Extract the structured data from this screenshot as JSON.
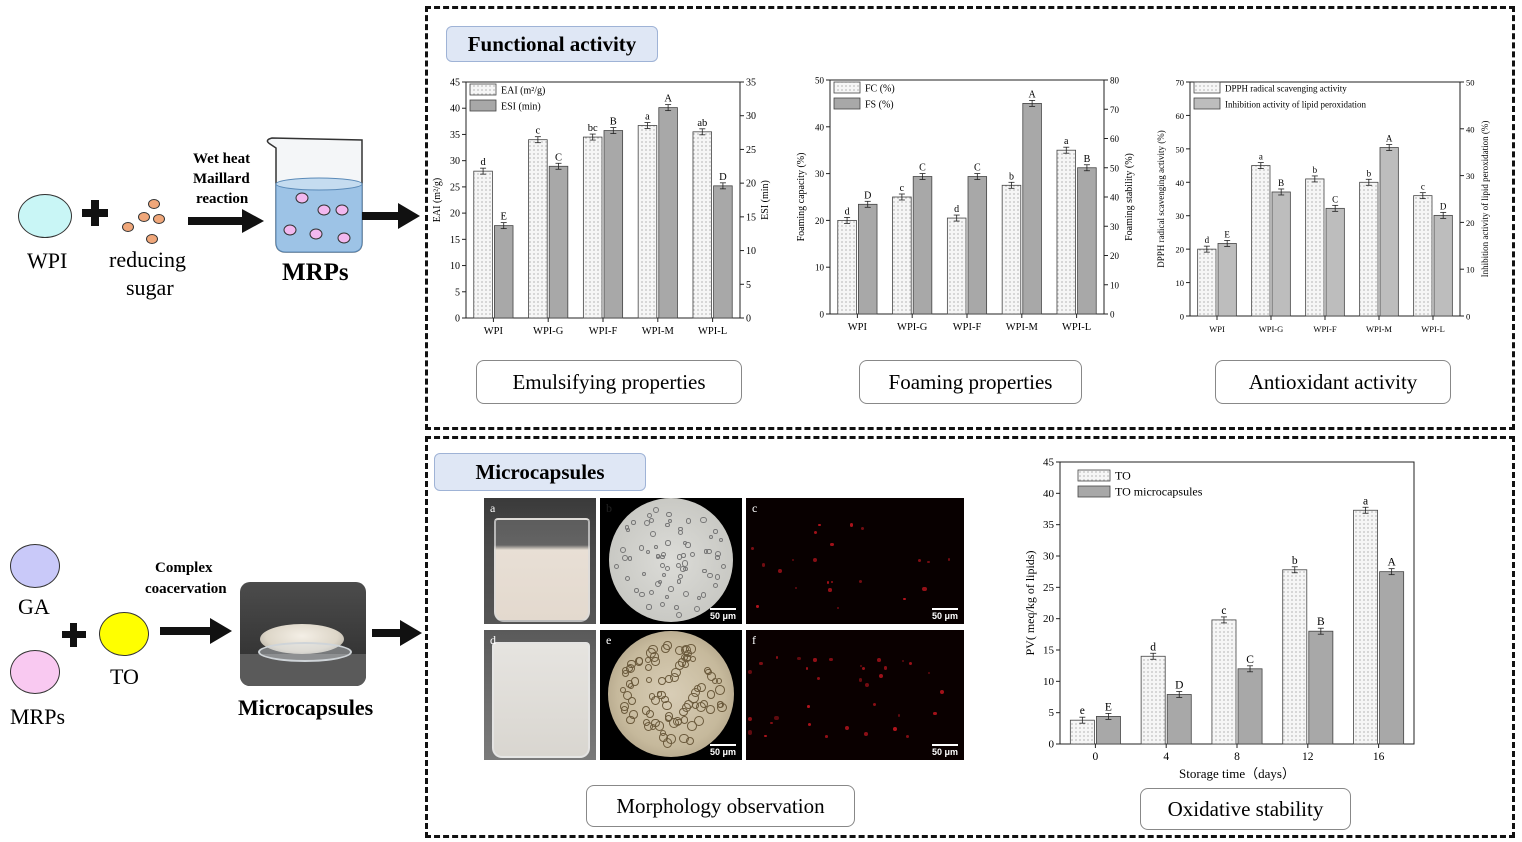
{
  "left_top": {
    "wpi_label": "WPI",
    "sugar_label_1": "reducing",
    "sugar_label_2": "sugar",
    "reaction_1": "Wet heat",
    "reaction_2": "Maillard",
    "reaction_3": "reaction",
    "product_label": "MRPs"
  },
  "left_bottom": {
    "ga_label": "GA",
    "mrps_label": "MRPs",
    "to_label": "TO",
    "process_1": "Complex",
    "process_2": "coacervation",
    "product_label": "Microcapsules"
  },
  "functional": {
    "tag": "Functional activity",
    "captions": [
      "Emulsifying properties",
      "Foaming properties",
      "Antioxidant activity"
    ]
  },
  "micro": {
    "tag": "Microcapsules",
    "morph_caption": "Morphology observation",
    "oxid_caption": "Oxidative stability",
    "panels": [
      {
        "label": "a",
        "scale": ""
      },
      {
        "label": "b",
        "scale": "50 μm"
      },
      {
        "label": "c",
        "scale": "50 μm"
      },
      {
        "label": "d",
        "scale": ""
      },
      {
        "label": "e",
        "scale": "50 μm"
      },
      {
        "label": "f",
        "scale": "50 μm"
      }
    ]
  },
  "colors": {
    "wpi": "#c9f6f6",
    "ga": "#c9c9f9",
    "mrps_ball": "#f9c9f1",
    "to": "#ffff00",
    "sugar": "#f0a77a",
    "tag_bg": "#dfe7f5",
    "bar_light": "#f2f2f2",
    "bar_dark": "#a8a8a8"
  },
  "chart_data": [
    {
      "type": "bar",
      "categories": [
        "WPI",
        "WPI-G",
        "WPI-F",
        "WPI-M",
        "WPI-L"
      ],
      "series": [
        {
          "name": "EAI (m²/g)",
          "values": [
            28,
            34,
            34.5,
            36.7,
            35.5
          ],
          "labels": [
            "d",
            "c",
            "bc",
            "a",
            "ab"
          ],
          "axis": "left"
        },
        {
          "name": "ESI (min)",
          "values": [
            13.7,
            22.5,
            27.8,
            31.2,
            19.6
          ],
          "labels": [
            "E",
            "C",
            "B",
            "A",
            "D"
          ],
          "axis": "right"
        }
      ],
      "ylabel": "EAI (m²/g)",
      "ylim": [
        0,
        45
      ],
      "yticks": [
        0,
        5,
        10,
        15,
        20,
        25,
        30,
        35,
        40,
        45
      ],
      "y2label": "ESI (min)",
      "y2lim": [
        0,
        35
      ],
      "y2ticks": [
        0,
        5,
        10,
        15,
        20,
        25,
        30,
        35
      ]
    },
    {
      "type": "bar",
      "categories": [
        "WPI",
        "WPI-G",
        "WPI-F",
        "WPI-M",
        "WPI-L"
      ],
      "series": [
        {
          "name": "FC (%)",
          "values": [
            20,
            25,
            20.5,
            27.5,
            35
          ],
          "labels": [
            "d",
            "c",
            "d",
            "b",
            "a"
          ],
          "axis": "left"
        },
        {
          "name": "FS (%)",
          "values": [
            37.5,
            47,
            47,
            72,
            50
          ],
          "labels": [
            "D",
            "C",
            "C",
            "A",
            "B"
          ],
          "axis": "right"
        }
      ],
      "ylabel": "Foaming capacity (%)",
      "ylim": [
        0,
        50
      ],
      "yticks": [
        0,
        10,
        20,
        30,
        40,
        50
      ],
      "y2label": "Foaming stability (%)",
      "y2lim": [
        0,
        80
      ],
      "y2ticks": [
        0,
        10,
        20,
        30,
        40,
        50,
        60,
        70,
        80
      ]
    },
    {
      "type": "bar",
      "categories": [
        "WPI",
        "WPI-G",
        "WPI-F",
        "WPI-M",
        "WPI-L"
      ],
      "series": [
        {
          "name": "DPPH radical scavenging activity",
          "values": [
            20,
            45,
            41,
            40,
            36
          ],
          "labels": [
            "d",
            "a",
            "b",
            "b",
            "c"
          ],
          "axis": "left"
        },
        {
          "name": "Inhibition activity of lipid peroxidation",
          "values": [
            15.5,
            26.5,
            23,
            36,
            21.5
          ],
          "labels": [
            "E",
            "B",
            "C",
            "A",
            "D"
          ],
          "axis": "right"
        }
      ],
      "ylabel": "DPPH radical scavenging activity (%)",
      "ylim": [
        0,
        70
      ],
      "yticks": [
        0,
        10,
        20,
        30,
        40,
        50,
        60,
        70
      ],
      "y2label": "Inhibition activity of lipid peroxidation (%)",
      "y2lim": [
        0,
        50
      ],
      "y2ticks": [
        0,
        10,
        20,
        30,
        40,
        50
      ]
    },
    {
      "type": "bar",
      "categories": [
        "0",
        "4",
        "8",
        "12",
        "16"
      ],
      "series": [
        {
          "name": "TO",
          "values": [
            3.8,
            14,
            19.8,
            27.8,
            37.3
          ],
          "labels": [
            "e",
            "d",
            "c",
            "b",
            "a"
          ]
        },
        {
          "name": "TO microcapsules",
          "values": [
            4.4,
            7.9,
            12,
            18,
            27.5
          ],
          "labels": [
            "E",
            "D",
            "C",
            "B",
            "A"
          ]
        }
      ],
      "xlabel": "Storage time（days）",
      "ylabel": "PV( meq/kg of lipids)",
      "ylim": [
        0,
        45
      ],
      "yticks": [
        0,
        5,
        10,
        15,
        20,
        25,
        30,
        35,
        40,
        45
      ]
    }
  ]
}
